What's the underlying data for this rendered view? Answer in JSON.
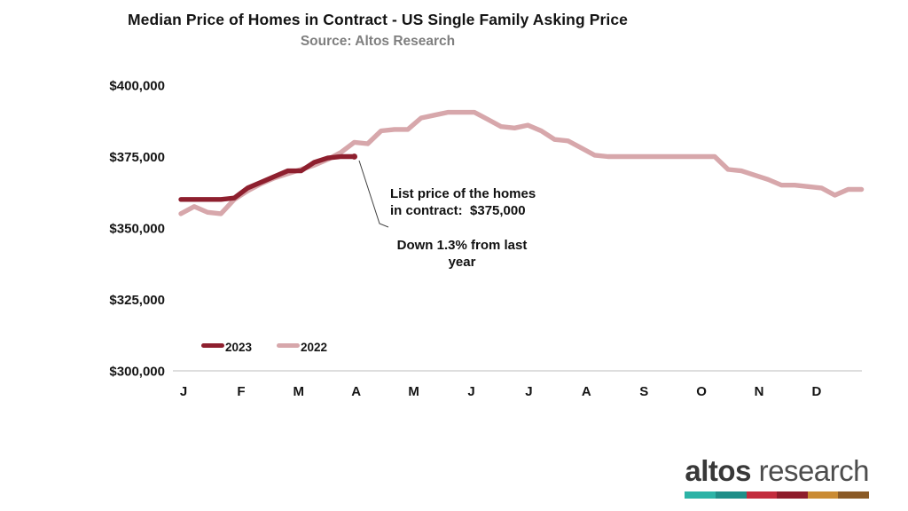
{
  "chart_data": {
    "type": "line",
    "title": "Median Price of Homes in Contract - US Single Family Asking Price",
    "subtitle": "Source: Altos Research",
    "x_unit": "weekly",
    "x_tick_labels": [
      "J",
      "F",
      "M",
      "A",
      "M",
      "J",
      "J",
      "A",
      "S",
      "O",
      "N",
      "D"
    ],
    "ylim": [
      300000,
      400000
    ],
    "grid": false,
    "legend_position": "bottom-left-inside",
    "y_ticks": [
      {
        "value": 400000,
        "label": "$400,000"
      },
      {
        "value": 375000,
        "label": "$375,000"
      },
      {
        "value": 350000,
        "label": "$350,000"
      },
      {
        "value": 325000,
        "label": "$325,000"
      },
      {
        "value": 300000,
        "label": "$300,000"
      }
    ],
    "series": [
      {
        "name": "2023",
        "color": "#8e1f2e",
        "values": [
          360000,
          360000,
          360000,
          360000,
          360500,
          364000,
          366000,
          368000,
          370000,
          370000,
          373000,
          374500,
          375000,
          375000
        ]
      },
      {
        "name": "2022",
        "color": "#d7a7ab",
        "values": [
          355000,
          357500,
          355500,
          355000,
          360000,
          363000,
          365500,
          367500,
          369000,
          370500,
          372000,
          374000,
          376500,
          380000,
          379500,
          384000,
          384500,
          384500,
          388500,
          389500,
          390500,
          390500,
          390500,
          388000,
          385500,
          385000,
          386000,
          384000,
          381000,
          380500,
          378000,
          375500,
          375000,
          375000,
          375000,
          375000,
          375000,
          375000,
          375000,
          375000,
          375000,
          370500,
          370000,
          368500,
          367000,
          365000,
          365000,
          364500,
          364000,
          361500,
          363500,
          363500
        ]
      }
    ],
    "annotation": {
      "line1": "List price of the homes",
      "line2": "in contract:  $375,000",
      "line3": "Down 1.3% from last",
      "line4": "year"
    }
  },
  "logo": {
    "brand_bold": "altos",
    "brand_light": "research",
    "bar_colors": [
      "#2cb3a6",
      "#1f8e88",
      "#c32c3d",
      "#8e1c2a",
      "#ca8b33",
      "#8a5a26"
    ]
  }
}
